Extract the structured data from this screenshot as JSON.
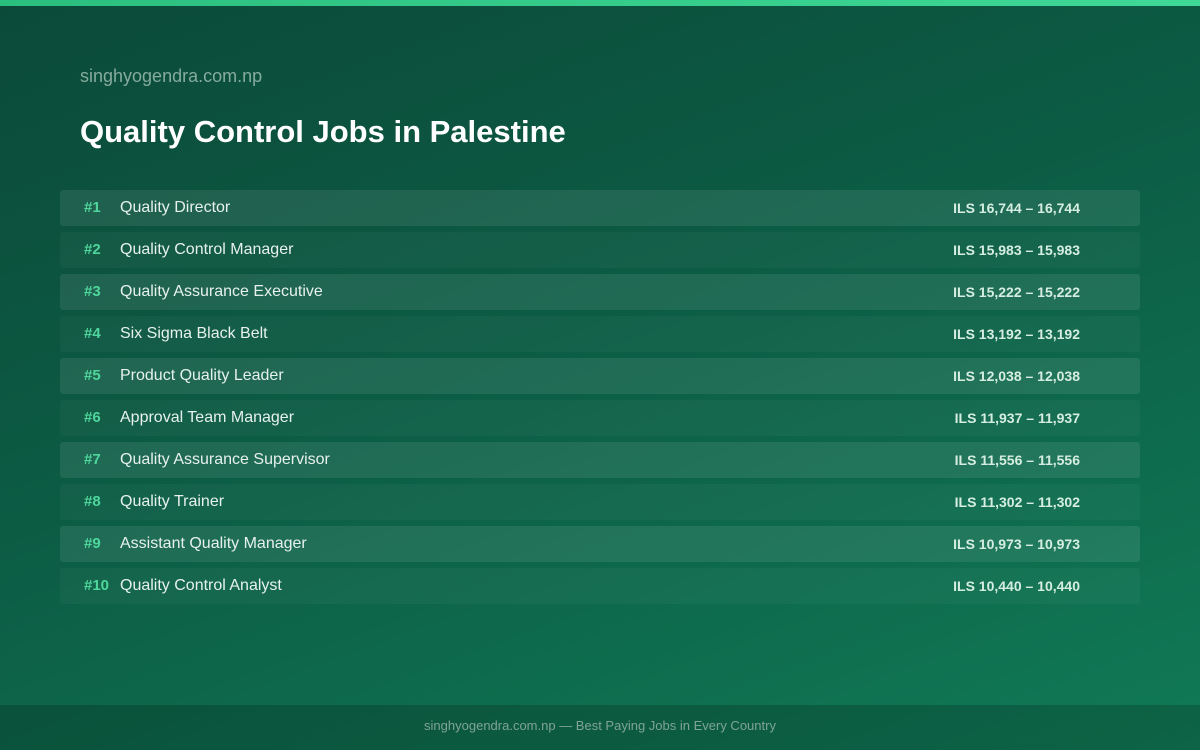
{
  "header": {
    "site": "singhyogendra.com.np",
    "title": "Quality Control Jobs in Palestine"
  },
  "table": {
    "rows": [
      [
        "#1",
        "Quality Director",
        "ILS 16,744 – 16,744"
      ],
      [
        "#2",
        "Quality Control Manager",
        "ILS 15,983 – 15,983"
      ],
      [
        "#3",
        "Quality Assurance Executive",
        "ILS 15,222 – 15,222"
      ],
      [
        "#4",
        "Six Sigma Black Belt",
        "ILS 13,192 – 13,192"
      ],
      [
        "#5",
        "Product Quality Leader",
        "ILS 12,038 – 12,038"
      ],
      [
        "#6",
        "Approval Team Manager",
        "ILS 11,937 – 11,937"
      ],
      [
        "#7",
        "Quality Assurance Supervisor",
        "ILS 11,556 – 11,556"
      ],
      [
        "#8",
        "Quality Trainer",
        "ILS 11,302 – 11,302"
      ],
      [
        "#9",
        "Assistant Quality Manager",
        "ILS 10,973 – 10,973"
      ],
      [
        "#10",
        "Quality Control Analyst",
        "ILS 10,440 – 10,440"
      ]
    ]
  },
  "footer": {
    "text": "singhyogendra.com.np — Best Paying Jobs in Every Country"
  }
}
